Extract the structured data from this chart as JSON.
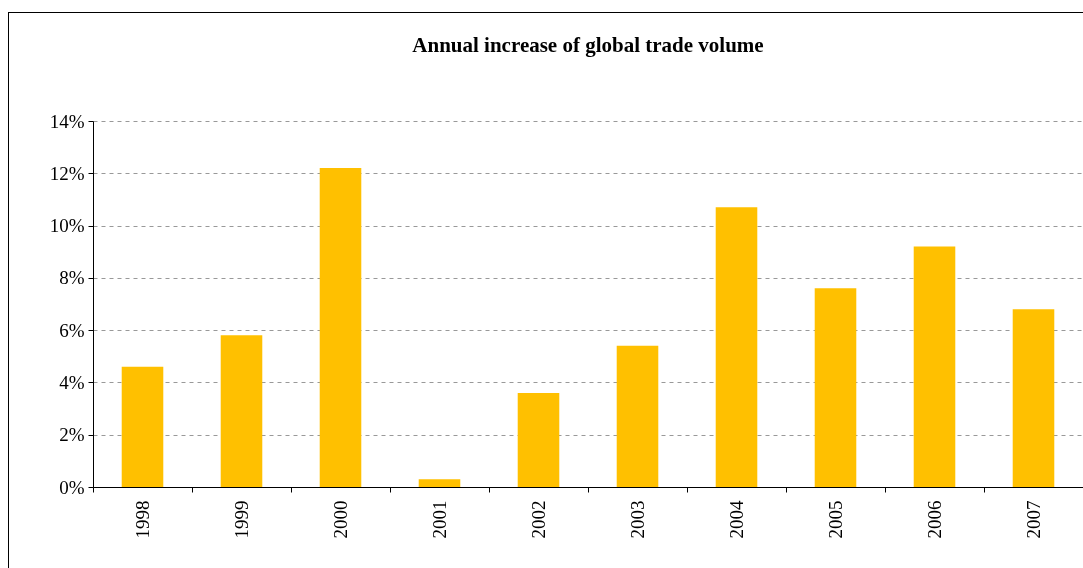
{
  "chart_data": {
    "type": "bar",
    "title": "Annual increase of global trade volume",
    "categories": [
      "1998",
      "1999",
      "2000",
      "2001",
      "2002",
      "2003",
      "2004",
      "2005",
      "2006",
      "2007"
    ],
    "values": [
      4.6,
      5.8,
      12.2,
      0.3,
      3.6,
      5.4,
      10.7,
      7.6,
      9.2,
      6.8
    ],
    "color": "#ffc000",
    "ylim": [
      0,
      14
    ],
    "yticks": [
      {
        "value": 0,
        "label": "0%"
      },
      {
        "value": 2,
        "label": "2%"
      },
      {
        "value": 4,
        "label": "4%"
      },
      {
        "value": 6,
        "label": "6%"
      },
      {
        "value": 8,
        "label": "8%"
      },
      {
        "value": 10,
        "label": "10%"
      },
      {
        "value": 12,
        "label": "12%"
      },
      {
        "value": 14,
        "label": "14%"
      }
    ],
    "grid": "y"
  }
}
